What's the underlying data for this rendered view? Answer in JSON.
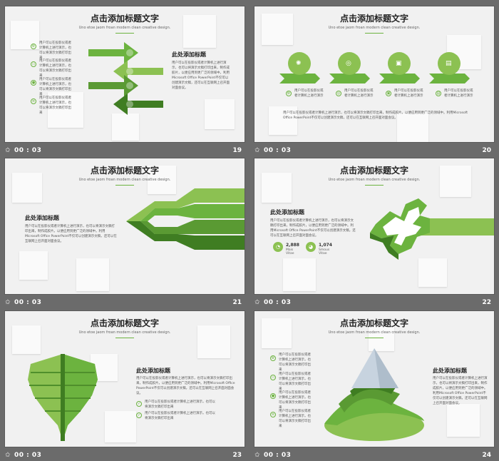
{
  "theme": {
    "green_light": "#8cc152",
    "green_mid": "#6cb33f",
    "green_dark": "#3f7d22",
    "background": "#6b6b6b"
  },
  "common": {
    "title": "点击添加标题文字",
    "subtitle": "Uno etoe jaom froan modern clean creative design.",
    "duration": "00 : 03",
    "transition_icon": "star-icon",
    "heading": "此处添加标题",
    "para_long": "用户可以在投影仪或者计算机上进行演示，也可以将演示文稿打印出来，制作成胶片，以便应用到更广泛的领域中。利用Microsoft Office PowerPoint不仅可以创建演示文稿，还可以在互联网上召开面对面会议。",
    "para_short": "用户可以在投影仪或者计算机上进行演示，也可以将演示文稿打印出来",
    "para_tiny": "用户可以在投影仪或者计算机上进行演示"
  },
  "slides": [
    {
      "number": "19"
    },
    {
      "number": "20",
      "body": "用户可以在投影仪或者计算机上进行演示，也可以将演示文稿打印出来，制作成胶片，以便应用到更广泛的领域中。利用Microsoft Office PowerPoint不仅可以创建演示文稿，还可以在互联网上召开面对面会议。"
    },
    {
      "number": "21"
    },
    {
      "number": "22",
      "stats": [
        {
          "value": "2,888",
          "label": "Mais Vitae"
        },
        {
          "value": "1,074",
          "label": "Smous Vitae"
        }
      ]
    },
    {
      "number": "23"
    },
    {
      "number": "24"
    }
  ]
}
